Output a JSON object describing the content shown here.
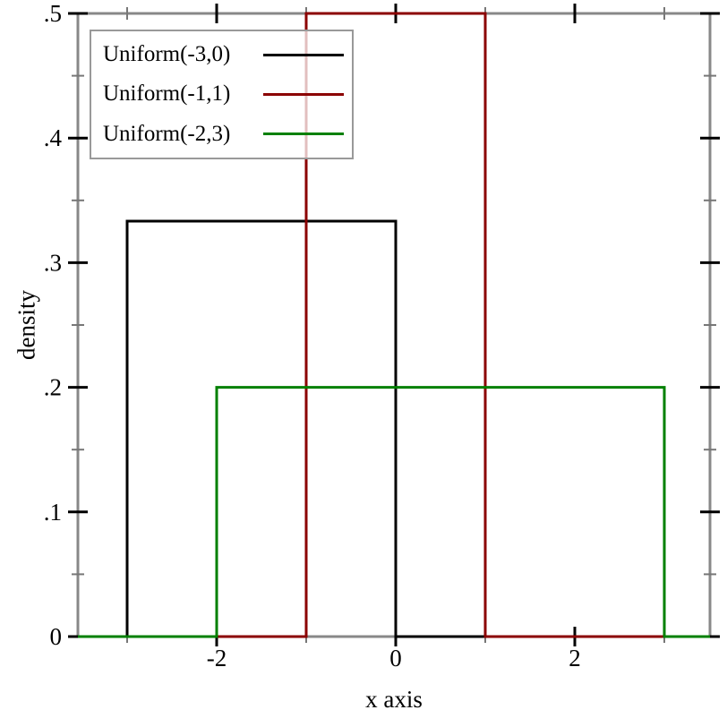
{
  "figure": {
    "background": "#ffffff",
    "frame_color": "#888888",
    "tick_major_color": "#000000",
    "tick_minor_color": "#777777",
    "text_color": "#000000",
    "legend_border_color": "#999999"
  },
  "chart_data": {
    "type": "line",
    "subtype": "step-density",
    "title": "",
    "xlabel": "x axis",
    "ylabel": "density",
    "xlim": [
      -3.55,
      3.51
    ],
    "ylim": [
      0,
      0.5
    ],
    "grid": false,
    "legend_position": "top-left",
    "x_major_ticks": [
      -2,
      0,
      2
    ],
    "x_major_tick_labels": [
      "-2",
      "0",
      "2"
    ],
    "x_minor_ticks": [
      -3,
      -1,
      1,
      3
    ],
    "y_major_ticks": [
      0,
      0.1,
      0.2,
      0.3,
      0.4,
      0.5
    ],
    "y_major_tick_labels": [
      "0",
      ".1",
      ".2",
      ".3",
      ".4",
      ".5"
    ],
    "y_minor_ticks": [
      0.05,
      0.15,
      0.25,
      0.35,
      0.45
    ],
    "series": [
      {
        "name": "Uniform(-3,0)",
        "color": "#000000",
        "support": [
          -3,
          0
        ],
        "density": 0.33333,
        "points": [
          [
            -3.55,
            0
          ],
          [
            -3,
            0
          ],
          [
            -3,
            0.33333
          ],
          [
            0,
            0.33333
          ],
          [
            0,
            0
          ],
          [
            3.51,
            0
          ]
        ]
      },
      {
        "name": "Uniform(-1,1)",
        "color": "#8b0000",
        "support": [
          -1,
          1
        ],
        "density": 0.5,
        "points": [
          [
            -3.55,
            0
          ],
          [
            -1,
            0
          ],
          [
            -1,
            0.5
          ],
          [
            1,
            0.5
          ],
          [
            1,
            0
          ],
          [
            3.51,
            0
          ]
        ]
      },
      {
        "name": "Uniform(-2,3)",
        "color": "#008000",
        "support": [
          -2,
          3
        ],
        "density": 0.2,
        "points": [
          [
            -3.55,
            0
          ],
          [
            -2,
            0
          ],
          [
            -2,
            0.2
          ],
          [
            3,
            0.2
          ],
          [
            3,
            0
          ],
          [
            3.51,
            0
          ]
        ]
      }
    ]
  }
}
